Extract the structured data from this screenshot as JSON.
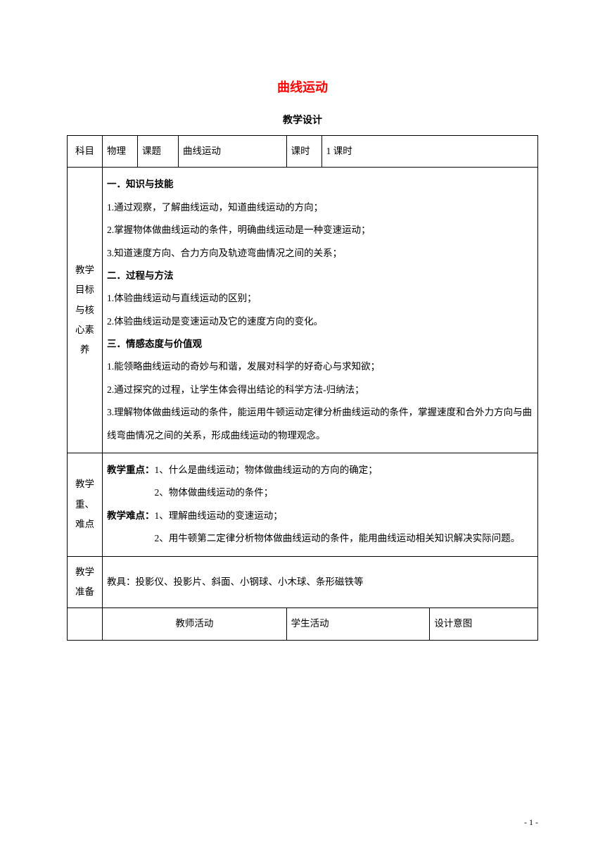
{
  "title": "曲线运动",
  "subtitle": "教学设计",
  "row1": {
    "subject_label": "科目",
    "subject_value": "物理",
    "topic_label": "课题",
    "topic_value": "曲线运动",
    "period_label": "课时",
    "period_value": "1 课时"
  },
  "goals": {
    "label": "教学目标与核心素养",
    "s1_heading": "一．知识与技能",
    "s1_items": [
      "1.通过观察，了解曲线运动，知道曲线运动的方向；",
      "2.掌握物体做曲线运动的条件，明确曲线运动是一种变速运动；",
      "3.知道速度方向、合力方向及轨迹弯曲情况之间的关系；"
    ],
    "s2_heading": "二．过程与方法",
    "s2_items": [
      "1.体验曲线运动与直线运动的区别；",
      "2.体验曲线运动是变速运动及它的速度方向的变化。"
    ],
    "s3_heading": "三．情感态度与价值观",
    "s3_items": [
      "1.能领略曲线运动的奇妙与和谐，发展对科学的好奇心与求知欲；",
      "2.通过探究的过程，让学生体会得出结论的科学方法-归纳法；",
      "3.理解物体做曲线运动的条件，能运用牛顿运动定律分析曲线运动的条件，掌握速度和合外力方向与曲线弯曲情况之间的关系，形成曲线运动的物理观念。"
    ]
  },
  "keypoints": {
    "label": "教学重、难点",
    "kp_label": "教学重点：",
    "kp_items": [
      "1、什么是曲线运动；物体做曲线运动的方向的确定；",
      "2、物体做曲线运动的条件；"
    ],
    "diff_label": "教学难点：",
    "diff_items": [
      "1、理解曲线运动的变速运动；",
      "2、用牛顿第二定律分析物体做曲线运动的条件，能用曲线运动相关知识解决实际问题。"
    ]
  },
  "prep": {
    "label": "教学准备",
    "content": "教具：投影仪、投影片、斜面、小钢球、小木球、条形磁铁等"
  },
  "activity_row": {
    "teacher": "教师活动",
    "student": "学生活动",
    "design": "设计意图"
  },
  "page_number": "- 1 -",
  "colors": {
    "title_color": "#ff0000",
    "text_color": "#000000",
    "border_color": "#000000",
    "background": "#ffffff"
  }
}
